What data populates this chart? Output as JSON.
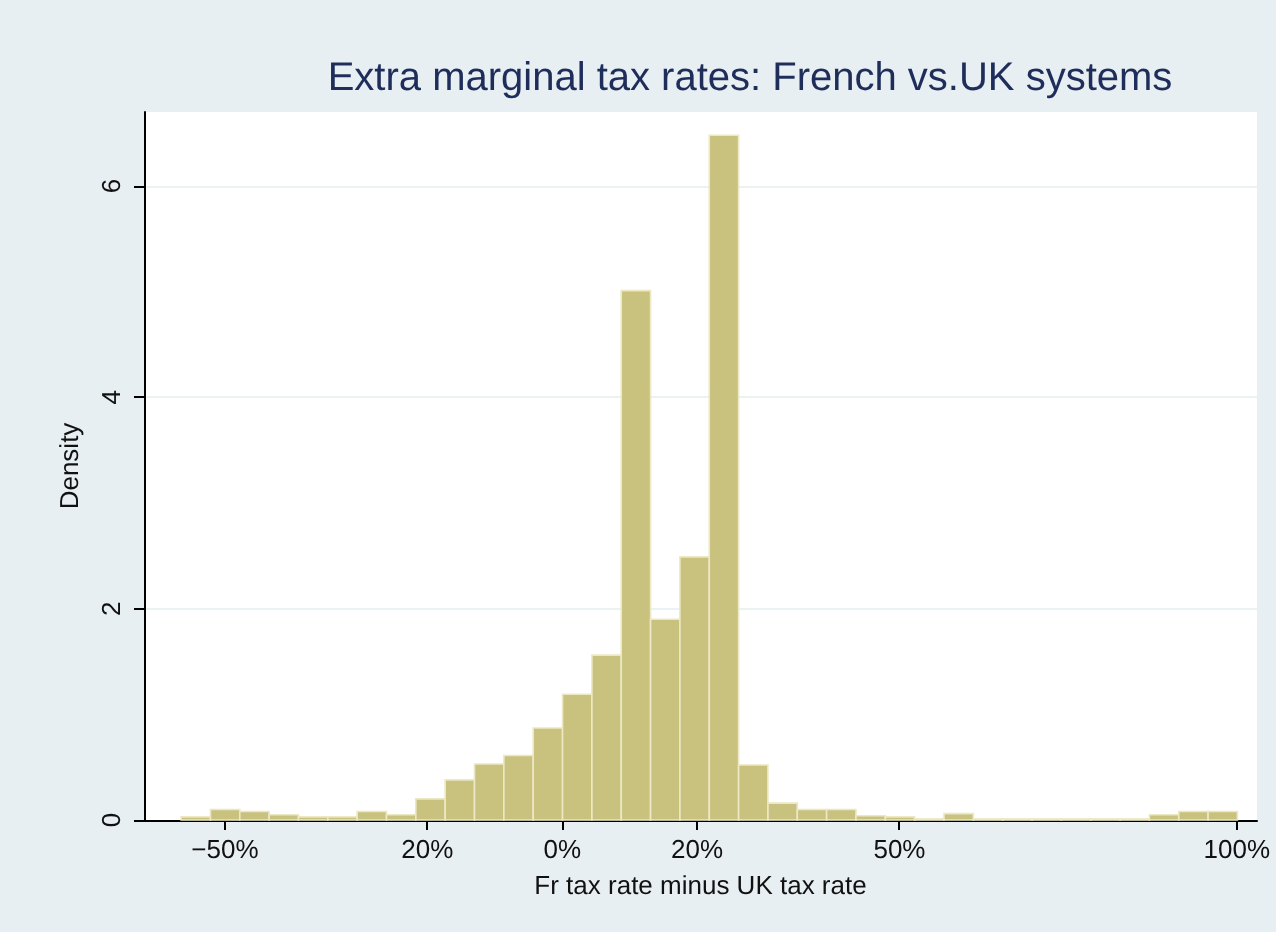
{
  "chart_data": {
    "type": "histogram",
    "title": "Extra marginal tax rates: French vs.UK systems",
    "xlabel": "Fr tax rate minus UK tax rate",
    "ylabel": "Density",
    "bins": [
      -56.5,
      -52.15,
      -47.8,
      -43.45,
      -39.1,
      -34.75,
      -30.4,
      -26.05,
      -21.7,
      -17.35,
      -13,
      -8.65,
      -4.3,
      0.05,
      4.4,
      8.75,
      13.1,
      17.45,
      21.8,
      26.15,
      30.5,
      34.85,
      39.2,
      43.55,
      47.9,
      52.25,
      56.6,
      60.95,
      65.3,
      69.65,
      74,
      78.35,
      82.7,
      87.05,
      91.4,
      95.75,
      100.1
    ],
    "values": [
      0.03,
      0.1,
      0.08,
      0.05,
      0.03,
      0.03,
      0.08,
      0.05,
      0.2,
      0.38,
      0.53,
      0.61,
      0.87,
      1.19,
      1.56,
      5.01,
      1.9,
      2.49,
      6.48,
      0.52,
      0.16,
      0.1,
      0.1,
      0.04,
      0.03,
      0.01,
      0.06,
      0.01,
      0.01,
      0.01,
      0.01,
      0.01,
      0.01,
      0.05,
      0.08,
      0.08
    ],
    "color": "#c9c27f",
    "xlim": [
      -62,
      103
    ],
    "xticks": [
      {
        "value": -50,
        "label": "−50%"
      },
      {
        "value": -20,
        "label": "20%"
      },
      {
        "value": 0,
        "label": "0%"
      },
      {
        "value": 20,
        "label": "20%"
      },
      {
        "value": 50,
        "label": "50%"
      },
      {
        "value": 100,
        "label": "100%"
      }
    ],
    "ylim": [
      0,
      6.7
    ],
    "yticks": [
      0,
      2,
      4,
      6
    ],
    "grid": "y"
  }
}
